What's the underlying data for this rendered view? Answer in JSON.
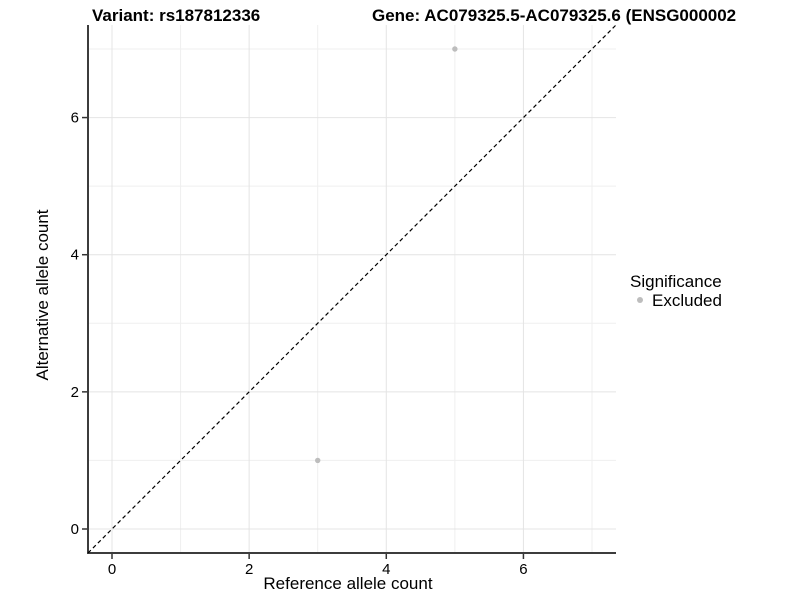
{
  "chart_data": {
    "type": "scatter",
    "titles": {
      "variant": "Variant: rs187812336",
      "gene": "Gene: AC079325.5-AC079325.6 (ENSG000002"
    },
    "xlabel": "Reference allele count",
    "ylabel": "Alternative allele count",
    "xlim": [
      -0.35,
      7.35
    ],
    "ylim": [
      -0.35,
      7.35
    ],
    "x_major_ticks": [
      0,
      2,
      4,
      6
    ],
    "y_major_ticks": [
      0,
      2,
      4,
      6
    ],
    "x_minor_ticks": [
      1,
      3,
      5,
      7
    ],
    "y_minor_ticks": [
      1,
      3,
      5,
      7
    ],
    "grid": true,
    "identity_line": {
      "slope": 1,
      "intercept": 0,
      "style": "dashed",
      "color": "#000000"
    },
    "series": [
      {
        "name": "Excluded",
        "color": "#bdbdbd",
        "points": [
          {
            "x": 5,
            "y": 7
          },
          {
            "x": 3,
            "y": 1
          }
        ]
      }
    ],
    "legend": {
      "title": "Significance",
      "position": "right",
      "entries": [
        {
          "label": "Excluded",
          "color": "#bdbdbd"
        }
      ]
    }
  },
  "colors": {
    "background": "#ffffff",
    "grid_major": "#e4e4e4",
    "grid_minor": "#efefef",
    "axis_line": "#3c3c3c",
    "tick_mark": "#333333",
    "text": "#000000"
  }
}
